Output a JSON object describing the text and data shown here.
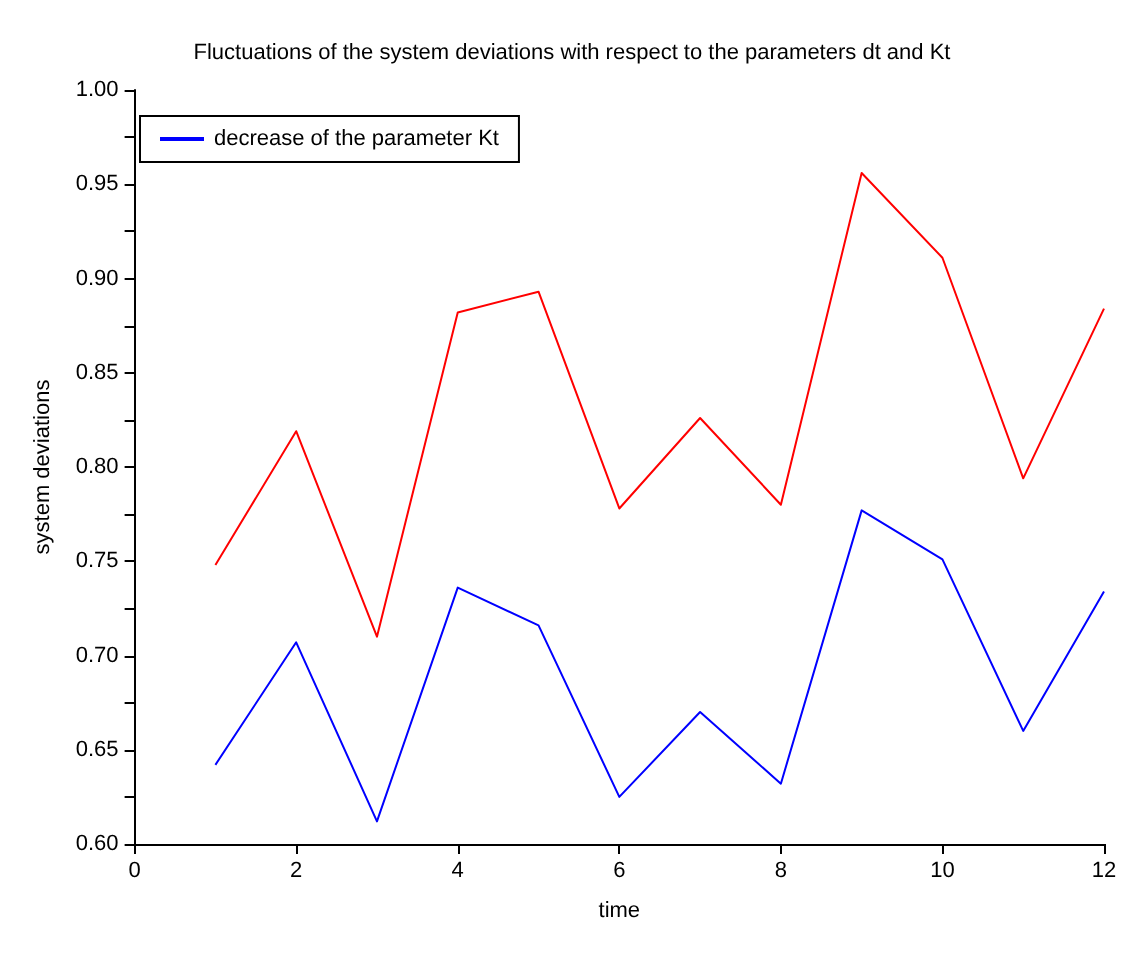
{
  "chart_data": {
    "type": "line",
    "title": "Fluctuations of the system deviations with respect to the parameters dt and Kt",
    "xlabel": "time",
    "ylabel": "system deviations",
    "x": [
      1,
      2,
      3,
      4,
      5,
      6,
      7,
      8,
      9,
      10,
      11,
      12
    ],
    "series": [
      {
        "color": "#ff0000",
        "values": [
          0.748,
          0.819,
          0.71,
          0.882,
          0.893,
          0.778,
          0.826,
          0.78,
          0.956,
          0.911,
          0.794,
          0.884
        ]
      },
      {
        "name": "decrease of the parameter Kt",
        "color": "#0000ff",
        "values": [
          0.642,
          0.707,
          0.612,
          0.736,
          0.716,
          0.625,
          0.67,
          0.632,
          0.777,
          0.751,
          0.66,
          0.734
        ]
      }
    ],
    "xlim": [
      0,
      12
    ],
    "xticks": [
      0,
      2,
      4,
      6,
      8,
      10,
      12
    ],
    "ylim": [
      0.6,
      1.0
    ],
    "yticks": [
      {
        "value": 0.6,
        "label": "0.60"
      },
      0.65,
      {
        "value": 0.7,
        "label": "0.70"
      },
      0.75,
      {
        "value": 0.8,
        "label": "0.80"
      },
      0.85,
      {
        "value": 0.9,
        "label": "0.90"
      },
      0.95,
      {
        "value": 1.0,
        "label": "1.00"
      }
    ],
    "grid": false,
    "legend": "top left",
    "marker": "none",
    "line_style": "solid"
  }
}
